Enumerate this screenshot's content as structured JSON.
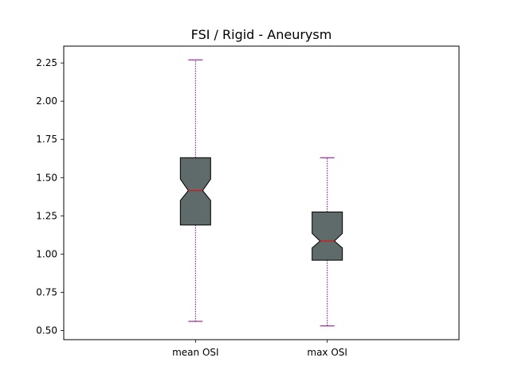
{
  "chart_data": {
    "type": "boxplot",
    "title": "FSI / Rigid - Aneurysm",
    "xlabel": "",
    "ylabel": "",
    "categories": [
      "mean OSI",
      "max OSI"
    ],
    "ylim": [
      0.44,
      2.36
    ],
    "yticks": [
      "0.50",
      "0.75",
      "1.00",
      "1.25",
      "1.50",
      "1.75",
      "2.00",
      "2.25"
    ],
    "notched": true,
    "grid": false,
    "boxes": [
      {
        "label": "mean OSI",
        "whisker_low": 0.56,
        "q1": 1.19,
        "notch_low": 1.35,
        "median": 1.415,
        "notch_high": 1.49,
        "q3": 1.63,
        "whisker_high": 2.27
      },
      {
        "label": "max OSI",
        "whisker_low": 0.53,
        "q1": 0.96,
        "notch_low": 1.04,
        "median": 1.085,
        "notch_high": 1.135,
        "q3": 1.275,
        "whisker_high": 1.63
      }
    ],
    "colors": {
      "box_fill": "#5f6a6a",
      "box_edge": "#000000",
      "median": "#ff0000",
      "whisker": "#800080",
      "cap": "#800080"
    }
  }
}
